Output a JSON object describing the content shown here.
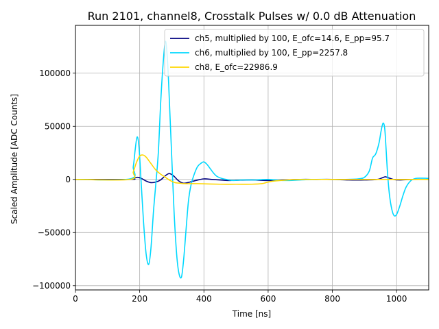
{
  "chart_data": {
    "type": "line",
    "title": "Run 2101, channel8, Crosstalk Pulses w/ 0.0 dB Attenuation",
    "xlabel": "Time [ns]",
    "ylabel": "Scaled Amplitude [ADC Counts]",
    "xlim": [
      0,
      1100
    ],
    "ylim": [
      -104000,
      145000
    ],
    "xticks": [
      0,
      200,
      400,
      600,
      800,
      1000
    ],
    "yticks": [
      -100000,
      -50000,
      0,
      50000,
      100000
    ],
    "xtick_labels": [
      "0",
      "200",
      "400",
      "600",
      "800",
      "1000"
    ],
    "ytick_labels": [
      "−100000",
      "−50000",
      "0",
      "50000",
      "100000"
    ],
    "grid": true,
    "legend_position": "top-right",
    "series": [
      {
        "name": "ch5, multiplied by 100, E_ofc=14.6, E_pp=95.7",
        "color": "#00007f",
        "x": [
          0,
          170,
          180,
          192,
          205,
          220,
          235,
          250,
          265,
          280,
          292,
          305,
          320,
          335,
          350,
          375,
          400,
          425,
          450,
          475,
          500,
          550,
          600,
          650,
          700,
          750,
          800,
          850,
          900,
          940,
          955,
          965,
          975,
          990,
          1010,
          1050,
          1100
        ],
        "y": [
          0,
          0,
          800,
          2000,
          1000,
          -1500,
          -3000,
          -2500,
          -500,
          3500,
          5500,
          3500,
          -1000,
          -3500,
          -3000,
          -1000,
          500,
          0,
          -500,
          -1000,
          -800,
          -500,
          -1000,
          -500,
          0,
          0,
          0,
          -500,
          -500,
          0,
          1500,
          2500,
          1500,
          0,
          -500,
          0,
          0
        ]
      },
      {
        "name": "ch6, multiplied by 100, E_pp=2257.8",
        "color": "#00d8ff",
        "x": [
          0,
          170,
          180,
          186,
          192,
          198,
          205,
          212,
          220,
          228,
          235,
          243,
          250,
          258,
          265,
          272,
          280,
          287,
          293,
          300,
          307,
          315,
          322,
          330,
          337,
          345,
          352,
          360,
          370,
          380,
          390,
          400,
          410,
          420,
          430,
          440,
          455,
          470,
          490,
          520,
          560,
          600,
          650,
          700,
          750,
          800,
          840,
          880,
          900,
          915,
          925,
          935,
          945,
          952,
          958,
          963,
          967,
          972,
          978,
          985,
          992,
          1000,
          1010,
          1020,
          1030,
          1045,
          1060,
          1080,
          1100
        ],
        "y": [
          0,
          500,
          12000,
          28000,
          40000,
          30000,
          -5000,
          -40000,
          -70000,
          -80000,
          -65000,
          -30000,
          -5000,
          25000,
          70000,
          105000,
          130000,
          110000,
          70000,
          20000,
          -30000,
          -70000,
          -88000,
          -92000,
          -75000,
          -45000,
          -20000,
          -5000,
          5000,
          12000,
          15000,
          16500,
          14000,
          10000,
          6000,
          3000,
          1000,
          0,
          -1000,
          -500,
          -500,
          0,
          -1000,
          -500,
          0,
          0,
          0,
          500,
          2000,
          8000,
          20000,
          24000,
          34000,
          46000,
          53000,
          48000,
          30000,
          5000,
          -15000,
          -28000,
          -34000,
          -33000,
          -25000,
          -15000,
          -7000,
          -1000,
          1000,
          1200,
          1000
        ]
      },
      {
        "name": "ch8, E_ofc=22986.9",
        "color": "#ffd700",
        "x": [
          0,
          170,
          180,
          190,
          200,
          210,
          220,
          235,
          250,
          265,
          280,
          295,
          310,
          325,
          340,
          380,
          450,
          500,
          550,
          580,
          600,
          620,
          660,
          700,
          800,
          900,
          960,
          1000,
          1050,
          1100
        ],
        "y": [
          0,
          0,
          7000,
          16000,
          22000,
          23000,
          21000,
          15000,
          9000,
          5000,
          2000,
          -1000,
          -3000,
          -3500,
          -4000,
          -4000,
          -4500,
          -4500,
          -4500,
          -4000,
          -2500,
          -1500,
          -500,
          0,
          0,
          0,
          0,
          0,
          0,
          0
        ]
      }
    ]
  }
}
